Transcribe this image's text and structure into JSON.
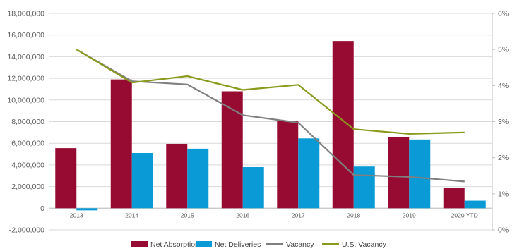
{
  "chart_data": {
    "type": "bar",
    "categories": [
      "2013",
      "2014",
      "2015",
      "2016",
      "2017",
      "2018",
      "2019",
      "2020 YTD"
    ],
    "series": [
      {
        "name": "Net Absorption",
        "kind": "bar",
        "axis": "left",
        "color": "#970b33",
        "values": [
          5550000,
          11900000,
          5950000,
          10800000,
          8050000,
          15450000,
          6600000,
          1850000
        ]
      },
      {
        "name": "Net Deliveries",
        "kind": "bar",
        "axis": "left",
        "color": "#0a9bd6",
        "values": [
          -200000,
          5100000,
          5500000,
          3800000,
          6450000,
          3850000,
          6350000,
          700000
        ]
      },
      {
        "name": "Vacancy",
        "kind": "line",
        "axis": "right",
        "color": "#7f7f7f",
        "values": [
          0.05,
          0.0412,
          0.0403,
          0.0318,
          0.0297,
          0.0152,
          0.0147,
          0.0134
        ]
      },
      {
        "name": "U.S. Vacancy",
        "kind": "line",
        "axis": "right",
        "color": "#8a9a1d",
        "values": [
          0.05,
          0.0408,
          0.0426,
          0.0388,
          0.0402,
          0.0279,
          0.0266,
          0.027
        ]
      }
    ],
    "left_axis": {
      "min": -2000000,
      "max": 18000000,
      "step": 2000000,
      "tick_labels": [
        "-2,000,000",
        "0",
        "2,000,000",
        "4,000,000",
        "6,000,000",
        "8,000,000",
        "10,000,000",
        "12,000,000",
        "14,000,000",
        "16,000,000",
        "18,000,000"
      ]
    },
    "right_axis": {
      "min": 0,
      "max": 0.06,
      "step": 0.01,
      "tick_labels": [
        "0%",
        "1%",
        "2%",
        "3%",
        "4%",
        "5%",
        "6%"
      ]
    },
    "grid": true,
    "legend": {
      "position": "bottom"
    }
  }
}
